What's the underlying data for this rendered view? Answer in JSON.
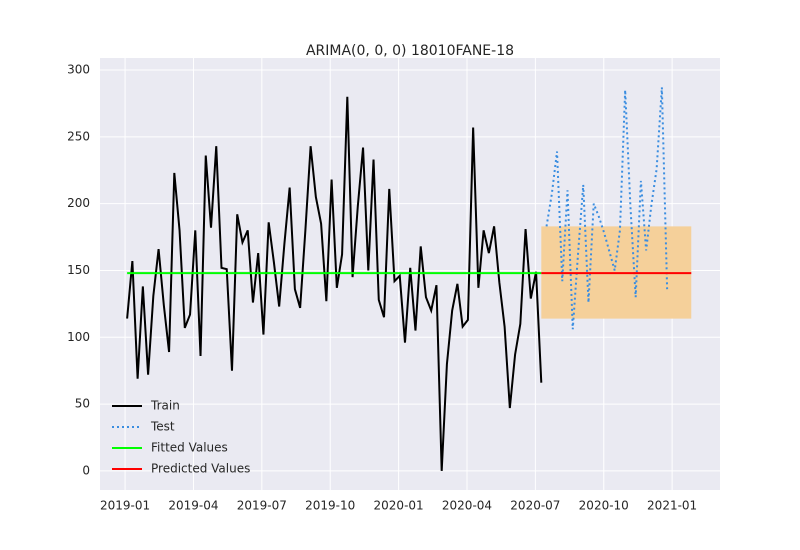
{
  "chart_data": {
    "type": "line",
    "title": "ARIMA(0, 0, 0) 18010FANE-18",
    "xlim": [
      -1.1,
      26.1
    ],
    "xticks": [
      {
        "value": 0,
        "label": "2019-01"
      },
      {
        "value": 3,
        "label": "2019-04"
      },
      {
        "value": 6,
        "label": "2019-07"
      },
      {
        "value": 9,
        "label": "2019-10"
      },
      {
        "value": 12,
        "label": "2020-01"
      },
      {
        "value": 15,
        "label": "2020-04"
      },
      {
        "value": 18,
        "label": "2020-07"
      },
      {
        "value": 21,
        "label": "2020-10"
      },
      {
        "value": 24,
        "label": "2021-01"
      }
    ],
    "ylim": [
      -14.3,
      309
    ],
    "yticks": [
      0,
      50,
      100,
      150,
      200,
      250,
      300
    ],
    "grid": true,
    "legend": "lower left",
    "series": [
      {
        "name": "Train",
        "color": "#000000",
        "style": "solid",
        "x": [
          0.09,
          0.32,
          0.55,
          0.78,
          1.01,
          1.24,
          1.47,
          1.7,
          1.93,
          2.16,
          2.39,
          2.62,
          2.85,
          3.08,
          3.31,
          3.54,
          3.77,
          4.0,
          4.23,
          4.46,
          4.69,
          4.92,
          5.15,
          5.38,
          5.61,
          5.84,
          6.07,
          6.3,
          6.53,
          6.76,
          6.99,
          7.22,
          7.45,
          7.68,
          7.91,
          8.14,
          8.37,
          8.6,
          8.83,
          9.06,
          9.29,
          9.52,
          9.75,
          9.98,
          10.21,
          10.44,
          10.67,
          10.9,
          11.13,
          11.36,
          11.59,
          11.82,
          12.05,
          12.28,
          12.51,
          12.74,
          12.97,
          13.2,
          13.43,
          13.66,
          13.89,
          14.12,
          14.35,
          14.58,
          14.81,
          15.04,
          15.27,
          15.5,
          15.73,
          15.96,
          16.19,
          16.42,
          16.65,
          16.88,
          17.11,
          17.34,
          17.57,
          17.8,
          18.03,
          18.26
        ],
        "values": [
          114,
          157,
          69,
          138,
          72,
          131,
          166,
          124,
          89,
          223,
          180,
          107,
          117,
          180,
          86,
          236,
          182,
          243,
          152,
          151,
          75,
          192,
          171,
          180,
          126,
          163,
          102,
          186,
          156,
          123,
          170,
          212,
          136,
          122,
          180,
          243,
          205,
          185,
          127,
          218,
          137,
          162,
          280,
          145,
          198,
          242,
          150,
          233,
          128,
          115,
          211,
          142,
          146,
          96,
          152,
          105,
          168,
          130,
          120,
          139,
          0,
          80,
          120,
          140,
          108,
          113,
          257,
          137,
          180,
          163,
          183,
          141,
          108,
          47,
          87,
          110,
          181,
          129,
          149,
          66
        ]
      },
      {
        "name": "Test",
        "color": "#3a8de0",
        "style": "dotted",
        "x": [
          18.49,
          18.72,
          18.95,
          19.18,
          19.41,
          19.64,
          19.87,
          20.1,
          20.33,
          20.56,
          20.79,
          21.02,
          21.25,
          21.48,
          21.71,
          21.94,
          22.17,
          22.4,
          22.63,
          22.86,
          23.09,
          23.32,
          23.55,
          23.78
        ],
        "values": [
          183,
          207,
          239,
          142,
          210,
          106,
          162,
          214,
          126,
          200,
          190,
          178,
          164,
          150,
          180,
          285,
          198,
          130,
          217,
          165,
          199,
          226,
          287,
          136
        ]
      },
      {
        "name": "Fitted Values",
        "color": "#00ff00",
        "style": "solid",
        "x": [
          0.09,
          18.26
        ],
        "values": [
          148,
          148
        ]
      },
      {
        "name": "Predicted Values",
        "color": "#ff0000",
        "style": "solid",
        "x": [
          18.26,
          24.84
        ],
        "values": [
          148,
          148
        ]
      }
    ],
    "confidence_band": {
      "color": "#f5d09a",
      "x": [
        18.26,
        24.84
      ],
      "lower": [
        114,
        114
      ],
      "upper": [
        183,
        183
      ]
    }
  }
}
